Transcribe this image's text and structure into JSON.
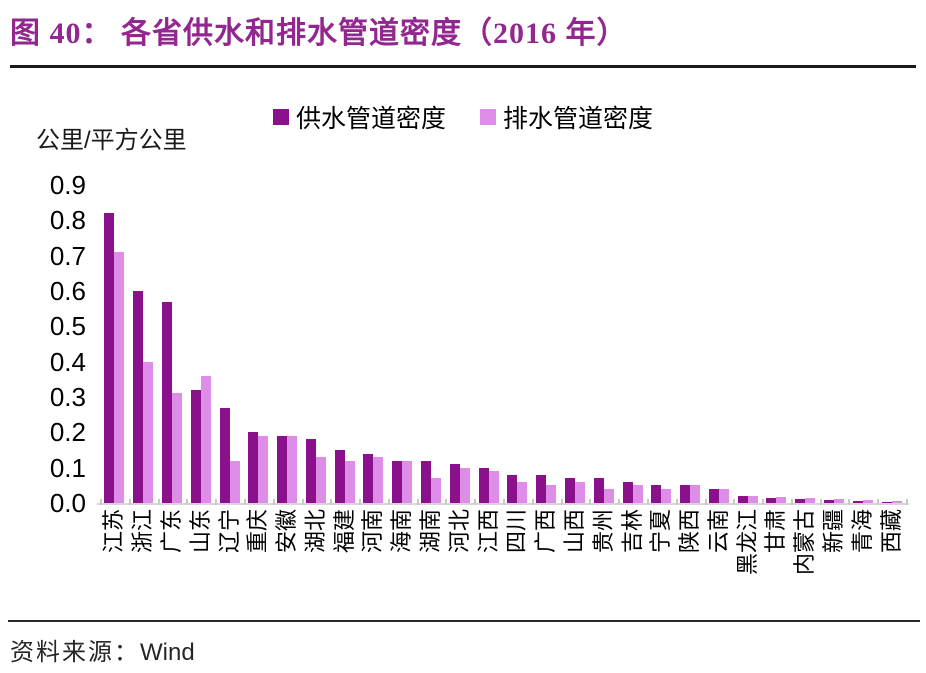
{
  "figure": {
    "title": "图 40：  各省供水和排水管道密度（2016 年）",
    "source_prefix": "资料来源：",
    "source_value": "Wind"
  },
  "colors": {
    "title_accent": "#92278F",
    "supply_bar": "#8B108C",
    "drain_bar": "#DD8CE8",
    "axis_gray": "#d6d6d6"
  },
  "chart_data": {
    "type": "bar",
    "title": "各省供水和排水管道密度（2016 年）",
    "unit_label": "公里/平方公里",
    "xlabel": "",
    "ylabel": "公里/平方公里",
    "ylim": [
      0,
      0.9
    ],
    "yticks": [
      0,
      0.1,
      0.2,
      0.3,
      0.4,
      0.5,
      0.6,
      0.7,
      0.8,
      0.9
    ],
    "grid": false,
    "legend_position": "top",
    "categories": [
      "江苏",
      "浙江",
      "广东",
      "山东",
      "辽宁",
      "重庆",
      "安徽",
      "湖北",
      "福建",
      "河南",
      "海南",
      "湖南",
      "河北",
      "江西",
      "四川",
      "广西",
      "山西",
      "贵州",
      "吉林",
      "宁夏",
      "陕西",
      "云南",
      "黑龙江",
      "甘肃",
      "内蒙古",
      "新疆",
      "青海",
      "西藏"
    ],
    "series": [
      {
        "name": "供水管道密度",
        "color": "#8B108C",
        "values": [
          0.82,
          0.6,
          0.57,
          0.32,
          0.27,
          0.2,
          0.19,
          0.18,
          0.15,
          0.14,
          0.12,
          0.12,
          0.11,
          0.1,
          0.08,
          0.08,
          0.07,
          0.07,
          0.06,
          0.05,
          0.05,
          0.04,
          0.02,
          0.015,
          0.012,
          0.008,
          0.006,
          0.004
        ]
      },
      {
        "name": "排水管道密度",
        "color": "#DD8CE8",
        "values": [
          0.71,
          0.4,
          0.31,
          0.36,
          0.12,
          0.19,
          0.19,
          0.13,
          0.12,
          0.13,
          0.12,
          0.07,
          0.1,
          0.09,
          0.06,
          0.05,
          0.06,
          0.04,
          0.05,
          0.04,
          0.05,
          0.04,
          0.02,
          0.018,
          0.014,
          0.01,
          0.008,
          0.005
        ]
      }
    ]
  }
}
